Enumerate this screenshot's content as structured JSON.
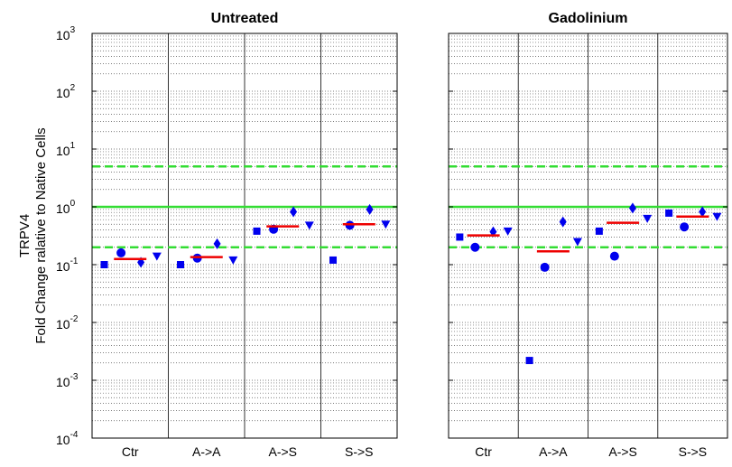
{
  "chart_data": [
    {
      "type": "scatter",
      "title": "Untreated",
      "ylabel": "TRPV4",
      "ylabel2": "Fold Change ralative to Native Cells",
      "yscale": "log",
      "ylim": [
        0.0001,
        1000
      ],
      "y_ticks": [
        {
          "base": "10",
          "exp": "3"
        },
        {
          "base": "10",
          "exp": "2"
        },
        {
          "base": "10",
          "exp": "1"
        },
        {
          "base": "10",
          "exp": "0"
        },
        {
          "base": "10",
          "exp": "-1"
        },
        {
          "base": "10",
          "exp": "-2"
        },
        {
          "base": "10",
          "exp": "-3"
        },
        {
          "base": "10",
          "exp": "-4"
        }
      ],
      "categories": [
        "Ctr",
        "A->A",
        "A->S",
        "S->S"
      ],
      "grid": "minor dotted",
      "reference_lines": [
        {
          "value": 5,
          "style": "dashed",
          "color": "#33dd33"
        },
        {
          "value": 1,
          "style": "solid",
          "color": "#33dd33"
        },
        {
          "value": 0.2,
          "style": "dashed",
          "color": "#33dd33"
        }
      ],
      "series": [
        {
          "marker": "square",
          "color": "#0000ee",
          "values": [
            0.1,
            0.1,
            0.38,
            0.12
          ]
        },
        {
          "marker": "circle",
          "color": "#0000ee",
          "values": [
            0.16,
            0.13,
            0.41,
            0.48
          ]
        },
        {
          "marker": "diamond",
          "color": "#0000ee",
          "values": [
            0.11,
            0.23,
            0.82,
            0.9
          ]
        },
        {
          "marker": "triangle-down",
          "color": "#0000ee",
          "values": [
            0.14,
            0.12,
            0.48,
            0.5
          ]
        }
      ],
      "mean": {
        "marker": "line",
        "color": "#ee0000",
        "values": [
          0.125,
          0.135,
          0.46,
          0.5
        ]
      }
    },
    {
      "type": "scatter",
      "title": "Gadolinium",
      "yscale": "log",
      "ylim": [
        0.0001,
        1000
      ],
      "categories": [
        "Ctr",
        "A->A",
        "A->S",
        "S->S"
      ],
      "grid": "minor dotted",
      "reference_lines": [
        {
          "value": 5,
          "style": "dashed",
          "color": "#33dd33"
        },
        {
          "value": 1,
          "style": "solid",
          "color": "#33dd33"
        },
        {
          "value": 0.2,
          "style": "dashed",
          "color": "#33dd33"
        }
      ],
      "series": [
        {
          "marker": "square",
          "color": "#0000ee",
          "values": [
            0.3,
            0.0022,
            0.38,
            0.78
          ]
        },
        {
          "marker": "circle",
          "color": "#0000ee",
          "values": [
            0.2,
            0.09,
            0.14,
            0.45
          ]
        },
        {
          "marker": "diamond",
          "color": "#0000ee",
          "values": [
            0.37,
            0.55,
            0.95,
            0.82
          ]
        },
        {
          "marker": "triangle-down",
          "color": "#0000ee",
          "values": [
            0.38,
            0.25,
            0.63,
            0.68
          ]
        }
      ],
      "mean": {
        "marker": "line",
        "color": "#ee0000",
        "values": [
          0.32,
          0.17,
          0.53,
          0.68
        ]
      }
    }
  ]
}
